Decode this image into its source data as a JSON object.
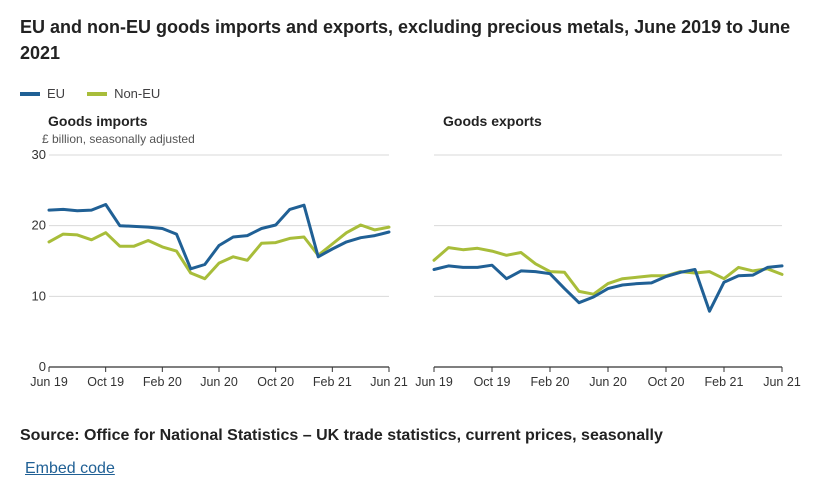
{
  "title": "EU and non-EU goods imports and exports, excluding precious metals, June 2019 to June 2021",
  "source": "Source: Office for National Statistics – UK trade statistics, current prices, seasonally",
  "embed_label": "Embed code",
  "colors": {
    "eu": "#206095",
    "non_eu": "#a8bd3a",
    "axis": "#333333",
    "grid": "#d9d9d9",
    "link": "#206095"
  },
  "legend": [
    {
      "label": "EU",
      "color": "#206095"
    },
    {
      "label": "Non-EU",
      "color": "#a8bd3a"
    }
  ],
  "chart_data": [
    {
      "type": "line",
      "title": "Goods imports",
      "ylabel": "£ billion, seasonally adjusted",
      "ylim": [
        0,
        30
      ],
      "yticks": [
        0,
        10,
        20,
        30
      ],
      "xtick_labels": [
        "Jun 19",
        "Oct 19",
        "Feb 20",
        "Jun 20",
        "Oct 20",
        "Feb 21",
        "Jun 21"
      ],
      "x": [
        "Jun 19",
        "Jul 19",
        "Aug 19",
        "Sep 19",
        "Oct 19",
        "Nov 19",
        "Dec 19",
        "Jan 20",
        "Feb 20",
        "Mar 20",
        "Apr 20",
        "May 20",
        "Jun 20",
        "Jul 20",
        "Aug 20",
        "Sep 20",
        "Oct 20",
        "Nov 20",
        "Dec 20",
        "Jan 21",
        "Feb 21",
        "Mar 21",
        "Apr 21",
        "May 21",
        "Jun 21"
      ],
      "series": [
        {
          "name": "EU",
          "values": [
            22.2,
            22.3,
            22.1,
            22.2,
            23.0,
            20.0,
            19.9,
            19.8,
            19.6,
            18.8,
            13.9,
            14.5,
            17.2,
            18.4,
            18.6,
            19.6,
            20.1,
            22.3,
            22.9,
            15.6,
            16.7,
            17.7,
            18.3,
            18.6,
            19.1
          ]
        },
        {
          "name": "Non-EU",
          "values": [
            17.7,
            18.8,
            18.7,
            18.0,
            19.0,
            17.1,
            17.1,
            17.9,
            17.0,
            16.4,
            13.3,
            12.5,
            14.7,
            15.6,
            15.1,
            17.5,
            17.6,
            18.2,
            18.4,
            15.8,
            17.4,
            19.0,
            20.1,
            19.4,
            19.8
          ]
        }
      ]
    },
    {
      "type": "line",
      "title": "Goods exports",
      "ylim": [
        0,
        30
      ],
      "xtick_labels": [
        "Jun 19",
        "Oct 19",
        "Feb 20",
        "Jun 20",
        "Oct 20",
        "Feb 21",
        "Jun 21"
      ],
      "x": [
        "Jun 19",
        "Jul 19",
        "Aug 19",
        "Sep 19",
        "Oct 19",
        "Nov 19",
        "Dec 19",
        "Jan 20",
        "Feb 20",
        "Mar 20",
        "Apr 20",
        "May 20",
        "Jun 20",
        "Jul 20",
        "Aug 20",
        "Sep 20",
        "Oct 20",
        "Nov 20",
        "Dec 20",
        "Jan 21",
        "Feb 21",
        "Mar 21",
        "Apr 21",
        "May 21",
        "Jun 21"
      ],
      "series": [
        {
          "name": "EU",
          "values": [
            13.8,
            14.3,
            14.1,
            14.1,
            14.4,
            12.5,
            13.6,
            13.5,
            13.2,
            11.1,
            9.1,
            9.9,
            11.1,
            11.6,
            11.8,
            11.9,
            12.8,
            13.4,
            13.8,
            7.9,
            12.0,
            12.9,
            13.0,
            14.1,
            14.3
          ]
        },
        {
          "name": "Non-EU",
          "values": [
            15.1,
            16.9,
            16.6,
            16.8,
            16.4,
            15.8,
            16.2,
            14.6,
            13.5,
            13.4,
            10.7,
            10.3,
            11.8,
            12.5,
            12.7,
            12.9,
            12.9,
            13.5,
            13.3,
            13.5,
            12.5,
            14.1,
            13.6,
            13.9,
            13.1
          ]
        }
      ]
    }
  ]
}
